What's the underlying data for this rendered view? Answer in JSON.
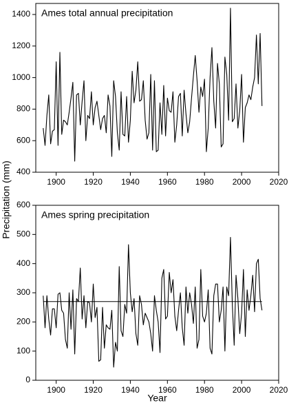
{
  "chart_data": [
    {
      "type": "line",
      "title": "Ames total annual precipitation",
      "x": [
        1893,
        1894,
        1895,
        1896,
        1897,
        1898,
        1899,
        1900,
        1901,
        1902,
        1903,
        1904,
        1905,
        1906,
        1907,
        1908,
        1909,
        1910,
        1911,
        1912,
        1913,
        1914,
        1915,
        1916,
        1917,
        1918,
        1919,
        1920,
        1921,
        1922,
        1923,
        1924,
        1925,
        1926,
        1927,
        1928,
        1929,
        1930,
        1931,
        1932,
        1933,
        1934,
        1935,
        1936,
        1937,
        1938,
        1939,
        1940,
        1941,
        1942,
        1943,
        1944,
        1945,
        1946,
        1947,
        1948,
        1949,
        1950,
        1951,
        1952,
        1953,
        1954,
        1955,
        1956,
        1957,
        1958,
        1959,
        1960,
        1961,
        1962,
        1963,
        1964,
        1965,
        1966,
        1967,
        1968,
        1969,
        1970,
        1971,
        1972,
        1973,
        1974,
        1975,
        1976,
        1977,
        1978,
        1979,
        1980,
        1981,
        1982,
        1983,
        1984,
        1985,
        1986,
        1987,
        1988,
        1989,
        1990,
        1991,
        1992,
        1993,
        1994,
        1995,
        1996,
        1997,
        1998,
        1999,
        2000,
        2001,
        2002,
        2003,
        2004,
        2005,
        2006,
        2007,
        2008,
        2009,
        2010,
        2011
      ],
      "series": [
        {
          "color": "#000000",
          "values": [
            680,
            570,
            760,
            890,
            580,
            660,
            670,
            1100,
            570,
            1160,
            640,
            730,
            720,
            700,
            780,
            870,
            970,
            470,
            890,
            900,
            700,
            850,
            980,
            600,
            760,
            740,
            910,
            700,
            810,
            850,
            760,
            670,
            740,
            760,
            650,
            890,
            820,
            500,
            980,
            880,
            650,
            540,
            910,
            640,
            630,
            880,
            590,
            730,
            1040,
            840,
            920,
            1100,
            850,
            860,
            980,
            730,
            610,
            650,
            1020,
            540,
            980,
            530,
            540,
            840,
            640,
            950,
            630,
            870,
            790,
            780,
            910,
            590,
            700,
            880,
            900,
            630,
            920,
            770,
            650,
            720,
            870,
            1010,
            1140,
            980,
            780,
            940,
            880,
            990,
            530,
            680,
            1000,
            1190,
            850,
            680,
            1090,
            960,
            560,
            580,
            1130,
            1020,
            730,
            1440,
            720,
            740,
            960,
            680,
            790,
            1020,
            590,
            810,
            840,
            890,
            860,
            940,
            1000,
            1270,
            960,
            1280,
            820
          ]
        }
      ],
      "xlim": [
        1889,
        2020
      ],
      "xticks": [
        1900,
        1920,
        1940,
        1960,
        1980,
        2000,
        2020
      ],
      "ylim": [
        400,
        1470
      ],
      "yticks": [
        400,
        600,
        800,
        1000,
        1200,
        1400
      ]
    },
    {
      "type": "line",
      "title": "Ames spring precipitation",
      "xlabel": "Year",
      "ylabel": "Precipitation (mm)",
      "x": [
        1893,
        1894,
        1895,
        1896,
        1897,
        1898,
        1899,
        1900,
        1901,
        1902,
        1903,
        1904,
        1905,
        1906,
        1907,
        1908,
        1909,
        1910,
        1911,
        1912,
        1913,
        1914,
        1915,
        1916,
        1917,
        1918,
        1919,
        1920,
        1921,
        1922,
        1923,
        1924,
        1925,
        1926,
        1927,
        1928,
        1929,
        1930,
        1931,
        1932,
        1933,
        1934,
        1935,
        1936,
        1937,
        1938,
        1939,
        1940,
        1941,
        1942,
        1943,
        1944,
        1945,
        1946,
        1947,
        1948,
        1949,
        1950,
        1951,
        1952,
        1953,
        1954,
        1955,
        1956,
        1957,
        1958,
        1959,
        1960,
        1961,
        1962,
        1963,
        1964,
        1965,
        1966,
        1967,
        1968,
        1969,
        1970,
        1971,
        1972,
        1973,
        1974,
        1975,
        1976,
        1977,
        1978,
        1979,
        1980,
        1981,
        1982,
        1983,
        1984,
        1985,
        1986,
        1987,
        1988,
        1989,
        1990,
        1991,
        1992,
        1993,
        1994,
        1995,
        1996,
        1997,
        1998,
        1999,
        2000,
        2001,
        2002,
        2003,
        2004,
        2005,
        2006,
        2007,
        2008,
        2009,
        2010,
        2011
      ],
      "series": [
        {
          "color": "#000000",
          "values": [
            290,
            180,
            290,
            210,
            155,
            245,
            245,
            180,
            295,
            300,
            240,
            230,
            140,
            110,
            300,
            175,
            310,
            90,
            280,
            270,
            385,
            210,
            290,
            180,
            270,
            265,
            200,
            330,
            215,
            250,
            65,
            70,
            250,
            110,
            190,
            180,
            175,
            240,
            45,
            130,
            100,
            390,
            170,
            150,
            260,
            230,
            465,
            300,
            235,
            280,
            160,
            120,
            290,
            260,
            190,
            230,
            215,
            200,
            160,
            100,
            290,
            240,
            200,
            95,
            350,
            380,
            210,
            220,
            370,
            300,
            345,
            220,
            170,
            240,
            300,
            180,
            120,
            320,
            230,
            300,
            260,
            195,
            320,
            110,
            140,
            380,
            220,
            200,
            230,
            310,
            110,
            90,
            290,
            330,
            330,
            200,
            240,
            320,
            100,
            320,
            290,
            490,
            260,
            120,
            360,
            280,
            160,
            230,
            380,
            150,
            310,
            240,
            290,
            360,
            235,
            400,
            415,
            280,
            240
          ]
        }
      ],
      "hline": 270,
      "xlim": [
        1889,
        2020
      ],
      "xticks": [
        1900,
        1920,
        1940,
        1960,
        1980,
        2000,
        2020
      ],
      "ylim": [
        0,
        600
      ],
      "yticks": [
        0,
        100,
        200,
        300,
        400,
        500,
        600
      ]
    }
  ]
}
